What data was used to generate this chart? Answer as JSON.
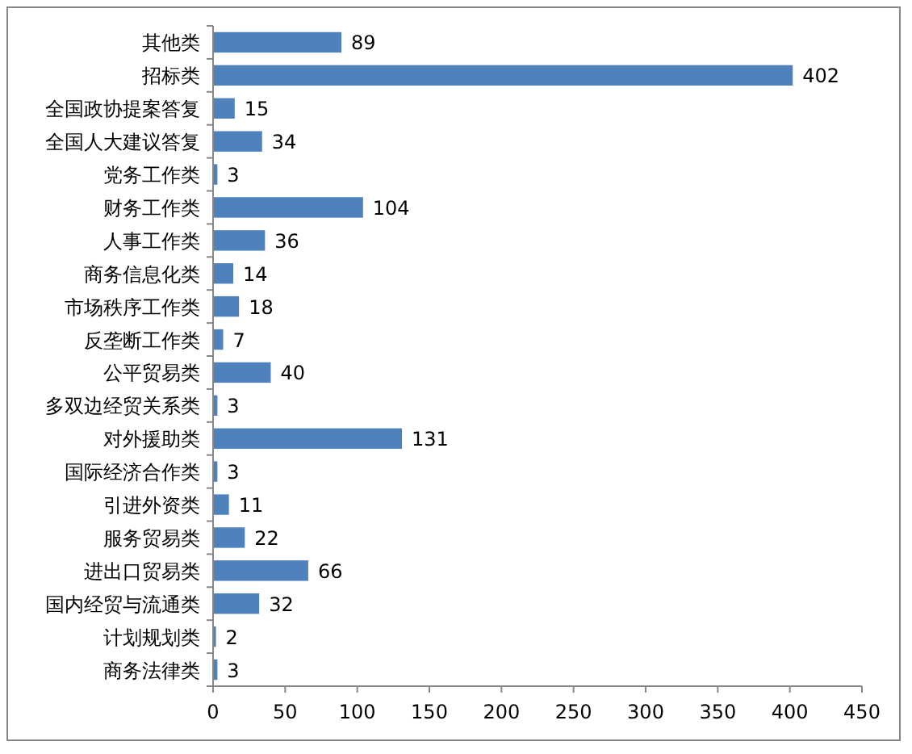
{
  "chart_data": {
    "type": "bar",
    "orientation": "horizontal",
    "data_labels": true,
    "categories": [
      "其他类",
      "招标类",
      "全国政协提案答复",
      "全国人大建议答复",
      "党务工作类",
      "财务工作类",
      "人事工作类",
      "商务信息化类",
      "市场秩序工作类",
      "反垄断工作类",
      "公平贸易类",
      "多双边经贸关系类",
      "对外援助类",
      "国际经济合作类",
      "引进外资类",
      "服务贸易类",
      "进出口贸易类",
      "国内经贸与流通类",
      "计划规划类",
      "商务法律类"
    ],
    "values": [
      89,
      402,
      15,
      34,
      3,
      104,
      36,
      14,
      18,
      7,
      40,
      3,
      131,
      3,
      11,
      22,
      66,
      32,
      2,
      3
    ],
    "color": "#4f81bd",
    "xlim": [
      0,
      450
    ],
    "xticks": [
      0,
      50,
      100,
      150,
      200,
      250,
      300,
      350,
      400,
      450
    ]
  }
}
